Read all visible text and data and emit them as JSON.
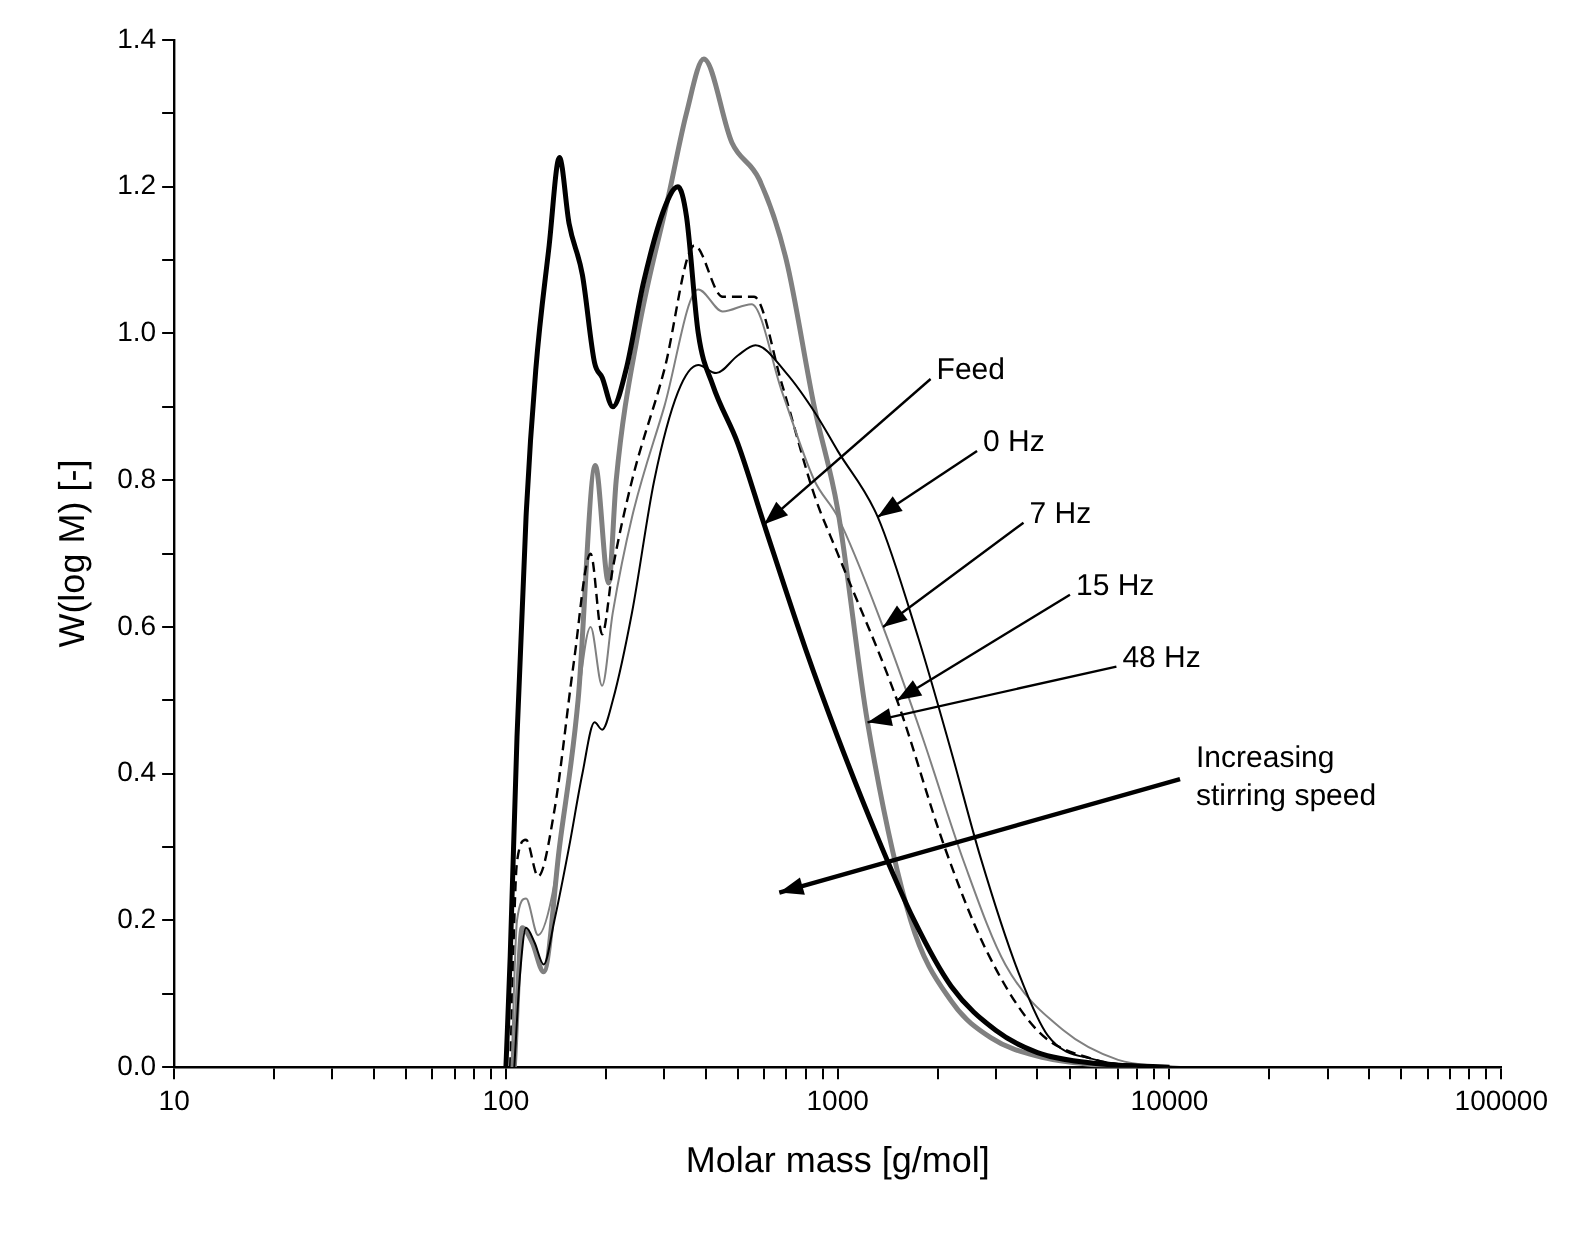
{
  "chart_data": {
    "type": "line",
    "xlabel": "Molar mass [g/mol]",
    "ylabel": "W(log M) [-]",
    "log": "x",
    "grid": false,
    "legend": false,
    "marker": "none",
    "xlim": [
      10,
      100000
    ],
    "xticks": [
      10,
      {
        "value": 20,
        "label": null
      },
      {
        "value": 30,
        "label": null
      },
      {
        "value": 40,
        "label": null
      },
      {
        "value": 50,
        "label": null
      },
      {
        "value": 60,
        "label": null
      },
      {
        "value": 70,
        "label": null
      },
      {
        "value": 80,
        "label": null
      },
      {
        "value": 90,
        "label": null
      },
      100,
      {
        "value": 200,
        "label": null
      },
      {
        "value": 300,
        "label": null
      },
      {
        "value": 400,
        "label": null
      },
      {
        "value": 500,
        "label": null
      },
      {
        "value": 600,
        "label": null
      },
      {
        "value": 700,
        "label": null
      },
      {
        "value": 800,
        "label": null
      },
      {
        "value": 900,
        "label": null
      },
      1000,
      {
        "value": 2000,
        "label": null
      },
      {
        "value": 3000,
        "label": null
      },
      {
        "value": 4000,
        "label": null
      },
      {
        "value": 5000,
        "label": null
      },
      {
        "value": 6000,
        "label": null
      },
      {
        "value": 7000,
        "label": null
      },
      {
        "value": 8000,
        "label": null
      },
      {
        "value": 9000,
        "label": null
      },
      10000,
      {
        "value": 20000,
        "label": null
      },
      {
        "value": 30000,
        "label": null
      },
      {
        "value": 40000,
        "label": null
      },
      {
        "value": 50000,
        "label": null
      },
      {
        "value": 60000,
        "label": null
      },
      {
        "value": 70000,
        "label": null
      },
      {
        "value": 80000,
        "label": null
      },
      {
        "value": 90000,
        "label": null
      },
      100000
    ],
    "ylim": [
      0,
      1.4
    ],
    "yticks": [
      {
        "value": 0,
        "label": "0.0"
      },
      {
        "value": 0.1,
        "label": null
      },
      0.2,
      {
        "value": 0.3,
        "label": null
      },
      0.4,
      {
        "value": 0.5,
        "label": null
      },
      0.6,
      {
        "value": 0.7,
        "label": null
      },
      0.8,
      {
        "value": 0.9,
        "label": null
      },
      {
        "value": 1,
        "label": "1.0"
      },
      {
        "value": 1.1,
        "label": null
      },
      1.2,
      {
        "value": 1.3,
        "label": null
      },
      1.4
    ],
    "series": [
      {
        "color": "#000000",
        "line_style": "solid",
        "x": [
          100,
          103,
          108,
          115,
          123,
          135,
          145,
          155,
          170,
          185,
          195,
          210,
          230,
          260,
          300,
          330,
          350,
          380,
          420,
          500,
          600,
          800,
          1000,
          1300,
          1700,
          2200,
          3000,
          4000,
          6000,
          10000
        ],
        "values": [
          0,
          0.15,
          0.45,
          0.75,
          0.95,
          1.12,
          1.24,
          1.15,
          1.08,
          0.96,
          0.94,
          0.9,
          0.95,
          1.07,
          1.17,
          1.2,
          1.16,
          1.0,
          0.93,
          0.85,
          0.74,
          0.57,
          0.45,
          0.32,
          0.2,
          0.11,
          0.05,
          0.02,
          0.005,
          0
        ]
      },
      {
        "color": "#000000",
        "line_style": "solid",
        "x": [
          106,
          110,
          115,
          122,
          130,
          140,
          155,
          170,
          185,
          195,
          210,
          240,
          280,
          330,
          380,
          430,
          500,
          565,
          700,
          860,
          1000,
          1320,
          1750,
          2200,
          2690,
          3500,
          4300,
          6000,
          8000,
          11000
        ],
        "values": [
          0,
          0.12,
          0.19,
          0.17,
          0.14,
          0.2,
          0.3,
          0.4,
          0.47,
          0.46,
          0.5,
          0.62,
          0.8,
          0.92,
          0.957,
          0.946,
          0.97,
          0.984,
          0.946,
          0.89,
          0.84,
          0.75,
          0.585,
          0.43,
          0.287,
          0.13,
          0.043,
          0.01,
          0.003,
          0
        ]
      },
      {
        "color": "#808080",
        "line_style": "solid",
        "x": [
          104,
          108,
          115,
          125,
          140,
          160,
          180,
          195,
          210,
          240,
          300,
          380,
          450,
          550,
          680,
          850,
          1000,
          1370,
          1800,
          2400,
          3200,
          4800,
          7000,
          10000
        ],
        "values": [
          0,
          0.2,
          0.23,
          0.18,
          0.25,
          0.45,
          0.6,
          0.52,
          0.62,
          0.75,
          0.9,
          1.06,
          1.03,
          1.04,
          0.92,
          0.8,
          0.75,
          0.6,
          0.45,
          0.28,
          0.14,
          0.05,
          0.01,
          0
        ]
      },
      {
        "color": "#000000",
        "line_style": "dashed",
        "x": [
          103,
          108,
          115,
          125,
          140,
          160,
          180,
          195,
          210,
          240,
          300,
          370,
          450,
          560,
          680,
          850,
          1000,
          1510,
          2100,
          2800,
          4000,
          6000,
          9000
        ],
        "values": [
          0,
          0.28,
          0.31,
          0.26,
          0.35,
          0.55,
          0.7,
          0.59,
          0.68,
          0.8,
          0.95,
          1.12,
          1.05,
          1.05,
          0.93,
          0.78,
          0.7,
          0.5,
          0.3,
          0.16,
          0.05,
          0.01,
          0
        ]
      },
      {
        "color": "#808080",
        "line_style": "solid",
        "x": [
          106,
          112,
          120,
          130,
          145,
          165,
          186,
          204,
          215,
          250,
          310,
          350,
          395,
          480,
          580,
          700,
          850,
          1000,
          1230,
          1660,
          2200,
          2900,
          4000,
          6000,
          8000
        ],
        "values": [
          0,
          0.19,
          0.17,
          0.13,
          0.3,
          0.5,
          0.82,
          0.66,
          0.8,
          1.0,
          1.19,
          1.3,
          1.374,
          1.26,
          1.21,
          1.1,
          0.9,
          0.76,
          0.47,
          0.2,
          0.09,
          0.04,
          0.015,
          0.003,
          0
        ]
      }
    ],
    "annotations": [
      {
        "text": "Feed",
        "x": 600,
        "y": 0.74
      },
      {
        "text": "0 Hz",
        "x": 1320,
        "y": 0.75
      },
      {
        "text": "7 Hz",
        "x": 1370,
        "y": 0.6
      },
      {
        "text": "15 Hz",
        "x": 1510,
        "y": 0.5
      },
      {
        "text": "48 Hz",
        "x": 1230,
        "y": 0.47
      },
      "Increasing\nstirring speed"
    ]
  }
}
